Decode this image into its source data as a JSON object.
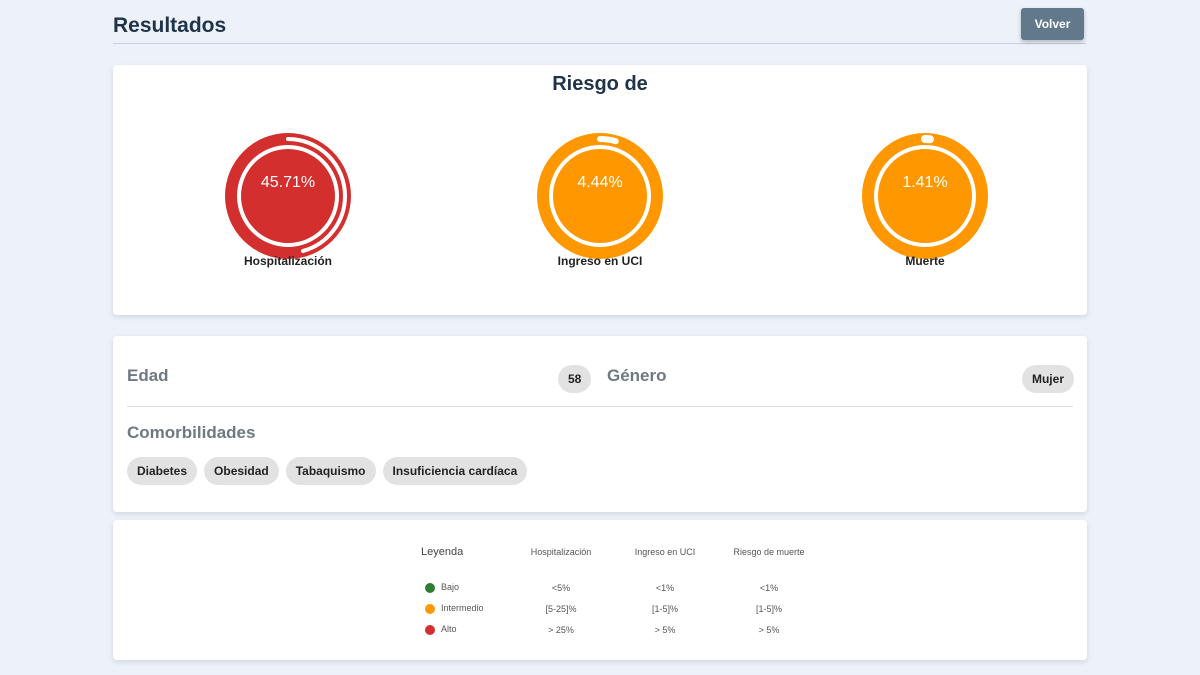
{
  "header": {
    "title": "Resultados",
    "back_label": "Volver"
  },
  "risk": {
    "title": "Riesgo de",
    "gauges": [
      {
        "value_text": "45.71%",
        "value": 45.71,
        "label": "Hospitalización",
        "color": "#d32f2f"
      },
      {
        "value_text": "4.44%",
        "value": 4.44,
        "label": "Ingreso en UCI",
        "color": "#ff9800"
      },
      {
        "value_text": "1.41%",
        "value": 1.41,
        "label": "Muerte",
        "color": "#ff9800"
      }
    ]
  },
  "patient": {
    "age_label": "Edad",
    "age_value": "58",
    "gender_label": "Género",
    "gender_value": "Mujer",
    "comorbidities_label": "Comorbilidades",
    "comorbidities": [
      "Diabetes",
      "Obesidad",
      "Tabaquismo",
      "Insuficiencia cardíaca"
    ]
  },
  "legend": {
    "headers": [
      "Leyenda",
      "Hospitalización",
      "Ingreso en UCI",
      "Riesgo de muerte"
    ],
    "rows": [
      {
        "level": "Bajo",
        "color": "#2e7d32",
        "hosp": "<5%",
        "uci": "<1%",
        "death": "<1%"
      },
      {
        "level": "Intermedio",
        "color": "#ff9800",
        "hosp": "[5-25]%",
        "uci": "[1-5]%",
        "death": "[1-5]%"
      },
      {
        "level": "Alto",
        "color": "#d32f2f",
        "hosp": "> 25%",
        "uci": "> 5%",
        "death": "> 5%"
      }
    ]
  }
}
